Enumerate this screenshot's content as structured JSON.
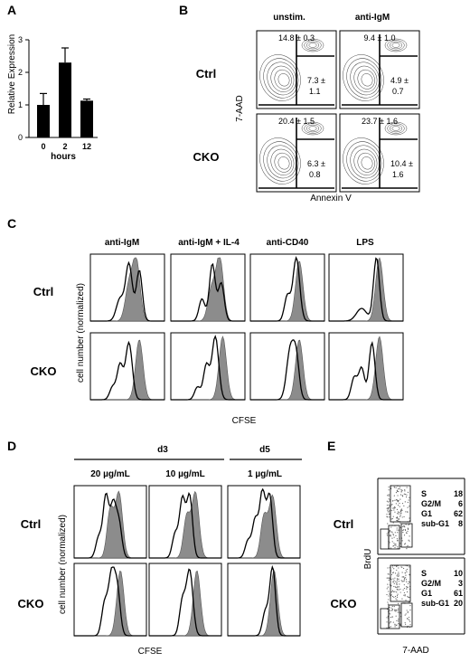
{
  "panels": {
    "A": {
      "label": "A",
      "ylabel": "Relative Expression",
      "xlabel": "hours"
    },
    "B": {
      "label": "B",
      "columns": [
        "unstim.",
        "anti-IgM"
      ],
      "rows": [
        "Ctrl",
        "CKO"
      ],
      "ylabel": "7-AAD",
      "xlabel": "Annexin V",
      "stats": [
        [
          {
            "top": "14.8 ± 0.3",
            "mid1": "7.3 ±",
            "mid2": "1.1"
          },
          {
            "top": "9.4 ± 1.0",
            "mid1": "4.9 ±",
            "mid2": "0.7"
          }
        ],
        [
          {
            "top": "20.4 ± 1.5",
            "mid1": "6.3 ±",
            "mid2": "0.8"
          },
          {
            "top": "23.7 ± 1.6",
            "mid1": "10.4 ±",
            "mid2": "1.6"
          }
        ]
      ]
    },
    "C": {
      "label": "C",
      "columns": [
        "anti-IgM",
        "anti-IgM + IL-4",
        "anti-CD40",
        "LPS"
      ],
      "rows": [
        "Ctrl",
        "CKO"
      ],
      "ylabel": "cell number (normalized)",
      "xlabel": "CFSE"
    },
    "D": {
      "label": "D",
      "groups": [
        "d3",
        "d5"
      ],
      "columns": [
        "20 µg/mL",
        "10 µg/mL",
        "1 µg/mL"
      ],
      "rows": [
        "Ctrl",
        "CKO"
      ],
      "ylabel": "cell number (normalized)",
      "xlabel": "CFSE"
    },
    "E": {
      "label": "E",
      "rows": [
        "Ctrl",
        "CKO"
      ],
      "ylabel": "BrdU",
      "xlabel": "7-AAD",
      "phases": [
        "S",
        "G2/M",
        "G1",
        "sub-G1"
      ],
      "values": [
        [
          "18",
          "6",
          "62",
          "8"
        ],
        [
          "10",
          "3",
          "61",
          "20"
        ]
      ]
    }
  },
  "chart_data": [
    {
      "type": "bar",
      "panel": "A",
      "categories": [
        "0",
        "2",
        "12"
      ],
      "values": [
        1.0,
        2.3,
        1.13
      ],
      "errors": [
        0.35,
        0.45,
        0.05
      ],
      "xlabel": "hours",
      "ylabel": "Relative Expression",
      "ylim": [
        0,
        3
      ],
      "yticks": [
        "0",
        "1",
        "2",
        "3"
      ],
      "grid": false
    },
    {
      "type": "scatter",
      "panel": "B",
      "subtype": "flow-cytometry contour plots",
      "xlabel": "Annexin V",
      "ylabel": "7-AAD"
    },
    {
      "type": "area",
      "panel": "C",
      "subtype": "CFSE histograms (filled = reference, line = comparison)",
      "xlabel": "CFSE",
      "ylabel": "cell number (normalized)"
    },
    {
      "type": "area",
      "panel": "D",
      "subtype": "CFSE histograms (filled = reference, line = comparison)",
      "xlabel": "CFSE",
      "ylabel": "cell number (normalized)"
    },
    {
      "type": "scatter",
      "panel": "E",
      "subtype": "cell cycle plots",
      "xlabel": "7-AAD",
      "ylabel": "BrdU",
      "series": [
        {
          "name": "Ctrl",
          "values": [
            18,
            6,
            62,
            8
          ]
        },
        {
          "name": "CKO",
          "values": [
            10,
            3,
            61,
            20
          ]
        }
      ],
      "categories": [
        "S",
        "G2/M",
        "G1",
        "sub-G1"
      ]
    }
  ]
}
